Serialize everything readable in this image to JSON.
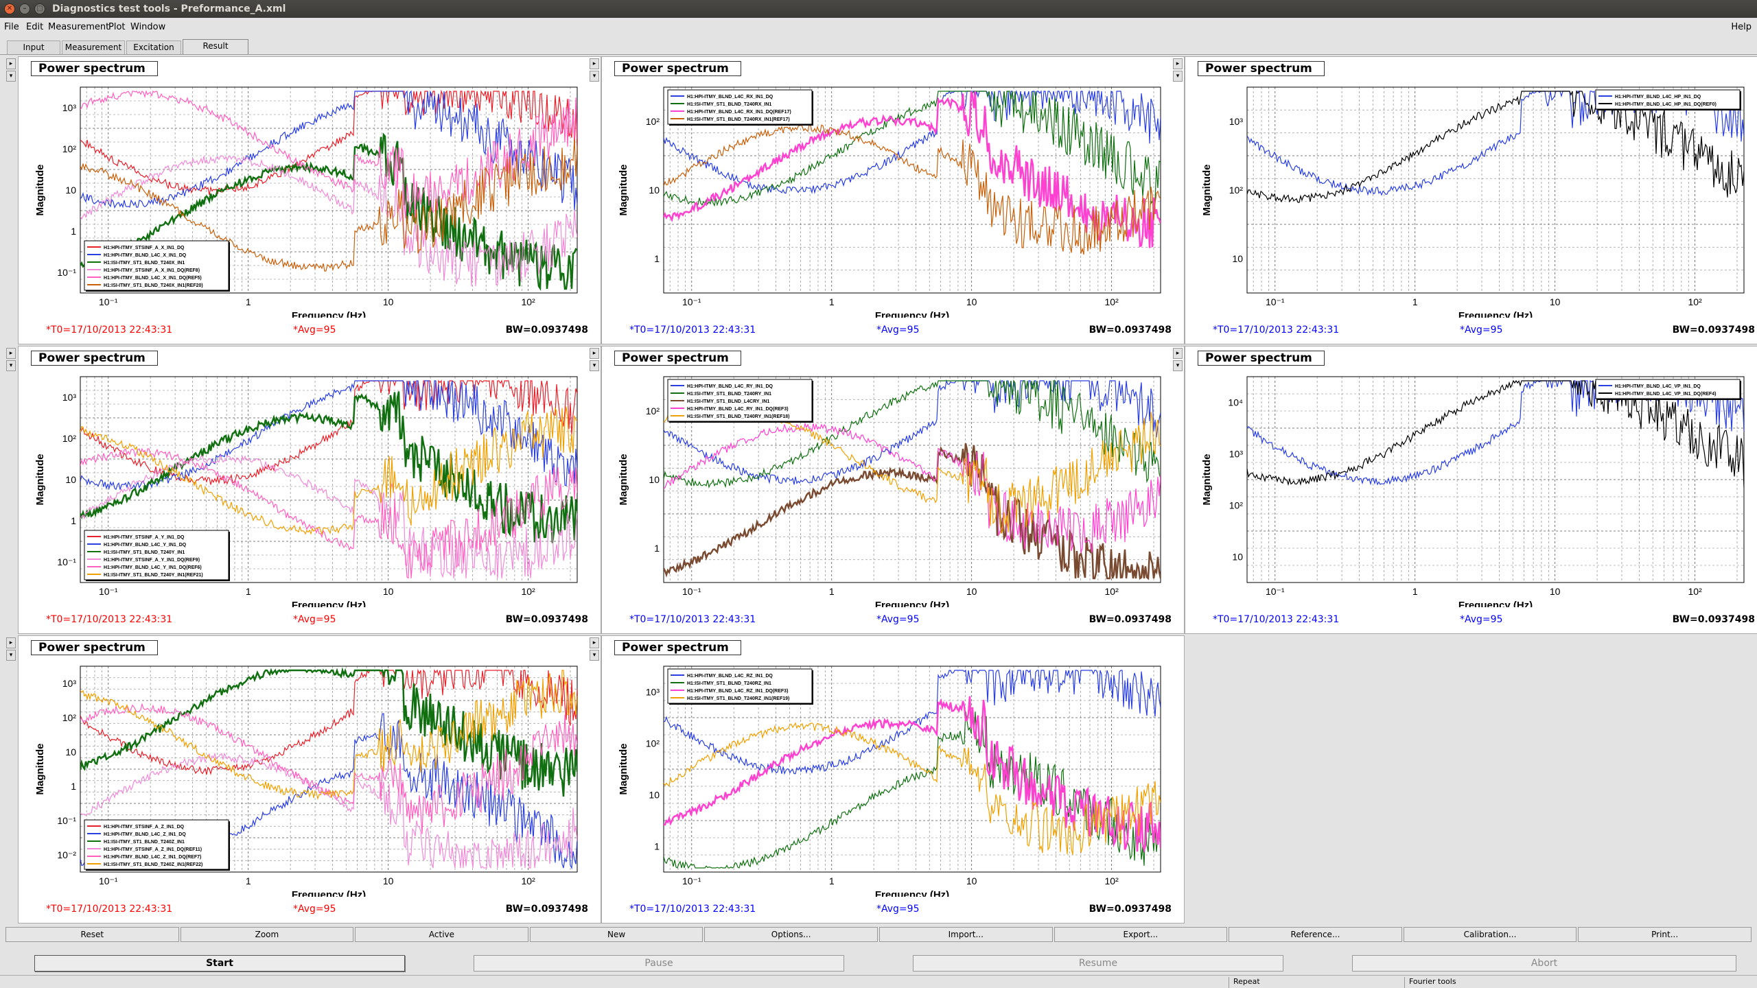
{
  "window": {
    "title": "Diagnostics test tools - Preformance_A.xml"
  },
  "menu": [
    "File",
    "Edit",
    "Measurement",
    "Plot",
    "Window"
  ],
  "menu_help": "Help",
  "tabs": [
    "Input",
    "Measurement",
    "Excitation",
    "Result"
  ],
  "active_tab": "Result",
  "axis_common": {
    "xlabel": "Frequency (Hz)",
    "ylabel": "Magnitude",
    "xticks": [
      "10⁻¹",
      "1",
      "10",
      "10²"
    ]
  },
  "panels": [
    {
      "title": "Power spectrum",
      "t0": "*T0=17/10/2013 22:43:31",
      "avg": "*Avg=95",
      "bw": "BW=0.0937498",
      "status_color": "#ff0000",
      "legend_pos": "bottom-left",
      "yticks": [
        "10³",
        "10²",
        "10",
        "1",
        "10⁻¹"
      ],
      "legend": [
        "H1:HPI-ITMY_STSINF_A_X_IN1_DQ",
        "H1:HPI-ITMY_BLND_L4C_X_IN1_DQ",
        "H1:ISI-ITMY_ST1_BLND_T240X_IN1",
        "H1:HPI-ITMY_STSINF_A_X_IN1_DQ(REF8)",
        "H1:HPI-ITMY_BLND_L4C_X_IN1_DQ(REF5)",
        "H1:ISI-ITMY_ST1_BLND_T240X_IN1(REF20)"
      ],
      "colors": [
        "#e8202a",
        "#2a3fe0",
        "#107010",
        "#f08ad8",
        "#ff60c0",
        "#c8600a"
      ]
    },
    {
      "title": "Power spectrum",
      "t0": "*T0=17/10/2013 22:43:31",
      "avg": "*Avg=95",
      "bw": "BW=0.0937498",
      "status_color": "#0000ff",
      "legend_pos": "top-left",
      "yticks": [
        "10²",
        "10",
        "1"
      ],
      "legend": [
        "H1:HPI-ITMY_BLND_L4C_RX_IN1_DQ",
        "H1:ISI-ITMY_ST1_BLND_T240RX_IN1",
        "H1:HPI-ITMY_BLND_L4C_RX_IN1_DQ(REF17)",
        "H1:ISI-ITMY_ST1_BLND_T240RX_IN1(REF17)"
      ],
      "colors": [
        "#2a3fe0",
        "#107010",
        "#ff40d0",
        "#c8600a"
      ]
    },
    {
      "title": "Power spectrum",
      "t0": "*T0=17/10/2013 22:43:31",
      "avg": "*Avg=95",
      "bw": "BW=0.0937498",
      "status_color": "#0000ff",
      "legend_pos": "top-right",
      "yticks": [
        "10³",
        "10²",
        "10"
      ],
      "legend": [
        "H1:HPI-ITMY_BLND_L4C_HP_IN1_DQ",
        "H1:HPI-ITMY_BLND_L4C_HP_IN1_DQ(REF0)"
      ],
      "colors": [
        "#2a3fe0",
        "#000000"
      ]
    },
    {
      "title": "Power spectrum",
      "t0": "*T0=17/10/2013 22:43:31",
      "avg": "*Avg=95",
      "bw": "BW=0.0937498",
      "status_color": "#ff0000",
      "legend_pos": "bottom-left",
      "yticks": [
        "10³",
        "10²",
        "10",
        "1",
        "10⁻¹"
      ],
      "legend": [
        "H1:HPI-ITMY_STSINF_A_Y_IN1_DQ",
        "H1:HPI-ITMY_BLND_L4C_Y_IN1_DQ",
        "H1:ISI-ITMY_ST1_BLND_T240Y_IN1",
        "H1:HPI-ITMY_STSINF_A_Y_IN1_DQ(REF9)",
        "H1:HPI-ITMY_BLND_L4C_Y_IN1_DQ(REF6)",
        "H1:ISI-ITMY_ST1_BLND_T240Y_IN1(REF21)"
      ],
      "colors": [
        "#e8202a",
        "#2a3fe0",
        "#107010",
        "#f08ad8",
        "#ff60c0",
        "#f0a000"
      ]
    },
    {
      "title": "Power spectrum",
      "t0": "*T0=17/10/2013 22:43:31",
      "avg": "*Avg=95",
      "bw": "BW=0.0937498",
      "status_color": "#0000ff",
      "legend_pos": "top-left",
      "yticks": [
        "10²",
        "10",
        "1"
      ],
      "legend": [
        "H1:HPI-ITMY_BLND_L4C_RY_IN1_DQ",
        "H1:ISI-ITMY_ST1_BLND_T240RY_IN1",
        "H1:ISI-ITMY_ST1_BLND_L4CRY_IN1",
        "H1:HPI-ITMY_BLND_L4C_RY_IN1_DQ(REF3)",
        "H1:ISI-ITMY_ST1_BLND_T240RY_IN1(REF18)"
      ],
      "colors": [
        "#2a3fe0",
        "#107010",
        "#7a4a30",
        "#ff40d0",
        "#f0a000"
      ]
    },
    {
      "title": "Power spectrum",
      "t0": "*T0=17/10/2013 22:43:31",
      "avg": "*Avg=95",
      "bw": "BW=0.0937498",
      "status_color": "#0000ff",
      "legend_pos": "top-right",
      "yticks": [
        "10⁴",
        "10³",
        "10²",
        "10"
      ],
      "legend": [
        "H1:HPI-ITMY_BLND_L4C_VP_IN1_DQ",
        "H1:HPI-ITMY_BLND_L4C_VP_IN1_DQ(REF4)"
      ],
      "colors": [
        "#2a3fe0",
        "#000000"
      ]
    },
    {
      "title": "Power spectrum",
      "t0": "*T0=17/10/2013 22:43:31",
      "avg": "*Avg=95",
      "bw": "BW=0.0937498",
      "status_color": "#ff0000",
      "legend_pos": "bottom-left",
      "yticks": [
        "10³",
        "10²",
        "10",
        "1",
        "10⁻¹",
        "10⁻²"
      ],
      "legend": [
        "H1:HPI-ITMY_STSINF_A_Z_IN1_DQ",
        "H1:HPI-ITMY_BLND_L4C_Z_IN1_DQ",
        "H1:ISI-ITMY_ST1_BLND_T240Z_IN1",
        "H1:HPI-ITMY_STSINF_A_Z_IN1_DQ(REF11)",
        "H1:HPI-ITMY_BLND_L4C_Z_IN1_DQ(REF7)",
        "H1:ISI-ITMY_ST1_BLND_T240Z_IN1(REF22)"
      ],
      "colors": [
        "#e8202a",
        "#2a3fe0",
        "#107010",
        "#f08ad8",
        "#ff60c0",
        "#f0a000"
      ]
    },
    {
      "title": "Power spectrum",
      "t0": "*T0=17/10/2013 22:43:31",
      "avg": "*Avg=95",
      "bw": "BW=0.0937498",
      "status_color": "#0000ff",
      "legend_pos": "top-left",
      "yticks": [
        "10³",
        "10²",
        "10",
        "1"
      ],
      "legend": [
        "H1:HPI-ITMY_BLND_L4C_RZ_IN1_DQ",
        "H1:ISI-ITMY_ST1_BLND_T240RZ_IN1",
        "H1:HPI-ITMY_BLND_L4C_RZ_IN1_DQ(REF3)",
        "H1:ISI-ITMY_ST1_BLND_T240RZ_IN1(REF19)"
      ],
      "colors": [
        "#2a3fe0",
        "#107010",
        "#ff40d0",
        "#f0a000"
      ]
    }
  ],
  "buttons": [
    "Reset",
    "Zoom",
    "Active",
    "New",
    "Options...",
    "Import...",
    "Export...",
    "Reference...",
    "Calibration...",
    "Print..."
  ],
  "controls": {
    "start": "Start",
    "pause": "Pause",
    "resume": "Resume",
    "abort": "Abort"
  },
  "status": {
    "repeat": "Repeat",
    "fourier": "Fourier tools"
  }
}
